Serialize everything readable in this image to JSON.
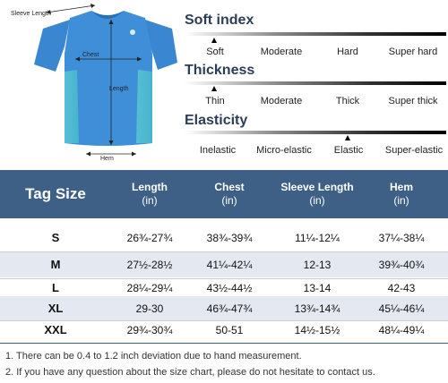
{
  "dimensions": {
    "sleeve_length": "Sleeve Length",
    "chest": "Chest",
    "length": "Length",
    "hem": "Hem"
  },
  "colors": {
    "shirt_main": "#3f8fd8",
    "shirt_side": "#55c0d2",
    "header_bg": "#3e5f86",
    "alt_row": "#e4e9f1",
    "scale_title": "#2c3e57"
  },
  "scales": [
    {
      "title": "Soft index",
      "labels": [
        "Soft",
        "Moderate",
        "Hard",
        "Super hard"
      ],
      "selected": 0
    },
    {
      "title": "Thickness",
      "labels": [
        "Thin",
        "Moderate",
        "Thick",
        "Super thick"
      ],
      "selected": 0
    },
    {
      "title": "Elasticity",
      "labels": [
        "Inelastic",
        "Micro-elastic",
        "Elastic",
        "Super-elastic"
      ],
      "selected": 2
    }
  ],
  "table": {
    "headers": [
      {
        "name": "Tag Size",
        "unit": ""
      },
      {
        "name": "Length",
        "unit": "(in)"
      },
      {
        "name": "Chest",
        "unit": "(in)"
      },
      {
        "name": "Sleeve Length",
        "unit": "(in)"
      },
      {
        "name": "Hem",
        "unit": "(in)"
      }
    ],
    "rows": [
      {
        "size": "S",
        "length": "26¾-27¾",
        "chest": "38¾-39¾",
        "sleeve": "11¼-12¼",
        "hem": "37¼-38¼"
      },
      {
        "size": "M",
        "length": "27½-28½",
        "chest": "41¼-42¼",
        "sleeve": "12-13",
        "hem": "39¾-40¾"
      },
      {
        "size": "L",
        "length": "28¼-29¼",
        "chest": "43½-44½",
        "sleeve": "13-14",
        "hem": "42-43"
      },
      {
        "size": "XL",
        "length": "29-30",
        "chest": "46¾-47¾",
        "sleeve": "13¾-14¾",
        "hem": "45¼-46¼"
      },
      {
        "size": "XXL",
        "length": "29¾-30¾",
        "chest": "50-51",
        "sleeve": "14½-15½",
        "hem": "48¼-49¼"
      }
    ]
  },
  "notes": [
    "1. There can be 0.4 to 1.2 inch deviation due to hand measurement.",
    "2. If you have any question about the size chart, please do not hesitate to contact us."
  ]
}
